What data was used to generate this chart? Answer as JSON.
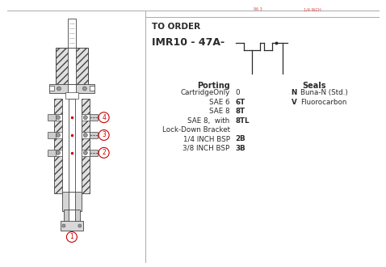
{
  "bg_color": "#ffffff",
  "text_color": "#2a2a2a",
  "red_color": "#cc0000",
  "line_color": "#444444",
  "hatch_color": "#555555",
  "border_color": "#888888",
  "to_order": "TO ORDER",
  "model": "IMR10 - 47A-",
  "porting_header": "Porting",
  "porting_rows": [
    [
      "CartridgeOnly",
      "0",
      false
    ],
    [
      "SAE 6",
      "6T",
      true
    ],
    [
      "SAE 8",
      "8T",
      true
    ],
    [
      "SAE 8,  with",
      "8TL",
      true
    ],
    [
      "Lock-Down Bracket",
      "",
      false
    ],
    [
      "1/4 INCH BSP",
      "2B",
      true
    ],
    [
      "3/8 INCH BSP",
      "3B",
      true
    ]
  ],
  "seals_header": "Seals",
  "seals_rows": [
    [
      "N",
      "Buna-N (Std.)"
    ],
    [
      "V",
      "Fluorocarbon"
    ]
  ]
}
